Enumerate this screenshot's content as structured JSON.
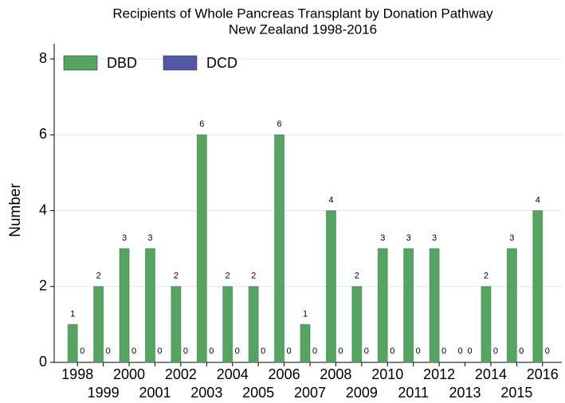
{
  "chart_data": {
    "type": "bar",
    "title": "Recipients of Whole Pancreas Transplant by Donation Pathway",
    "subtitle": "New Zealand 1998-2016",
    "y_label": "Number",
    "categories": [
      "1998",
      "1999",
      "2000",
      "2001",
      "2002",
      "2003",
      "2004",
      "2005",
      "2006",
      "2007",
      "2008",
      "2009",
      "2010",
      "2011",
      "2012",
      "2013",
      "2014",
      "2015",
      "2016"
    ],
    "series": [
      {
        "name": "DBD",
        "color": "#55a462",
        "values": [
          1,
          2,
          3,
          3,
          2,
          6,
          2,
          2,
          6,
          1,
          4,
          2,
          3,
          3,
          3,
          0,
          2,
          3,
          4
        ]
      },
      {
        "name": "DCD",
        "color": "#5159a6",
        "values": [
          0,
          0,
          0,
          0,
          0,
          0,
          0,
          0,
          0,
          0,
          0,
          0,
          0,
          0,
          0,
          0,
          0,
          0,
          0
        ]
      }
    ],
    "ylim": [
      0,
      8
    ],
    "yticks": [
      0,
      2,
      4,
      6,
      8
    ],
    "grid": true,
    "legend": "top-left"
  }
}
